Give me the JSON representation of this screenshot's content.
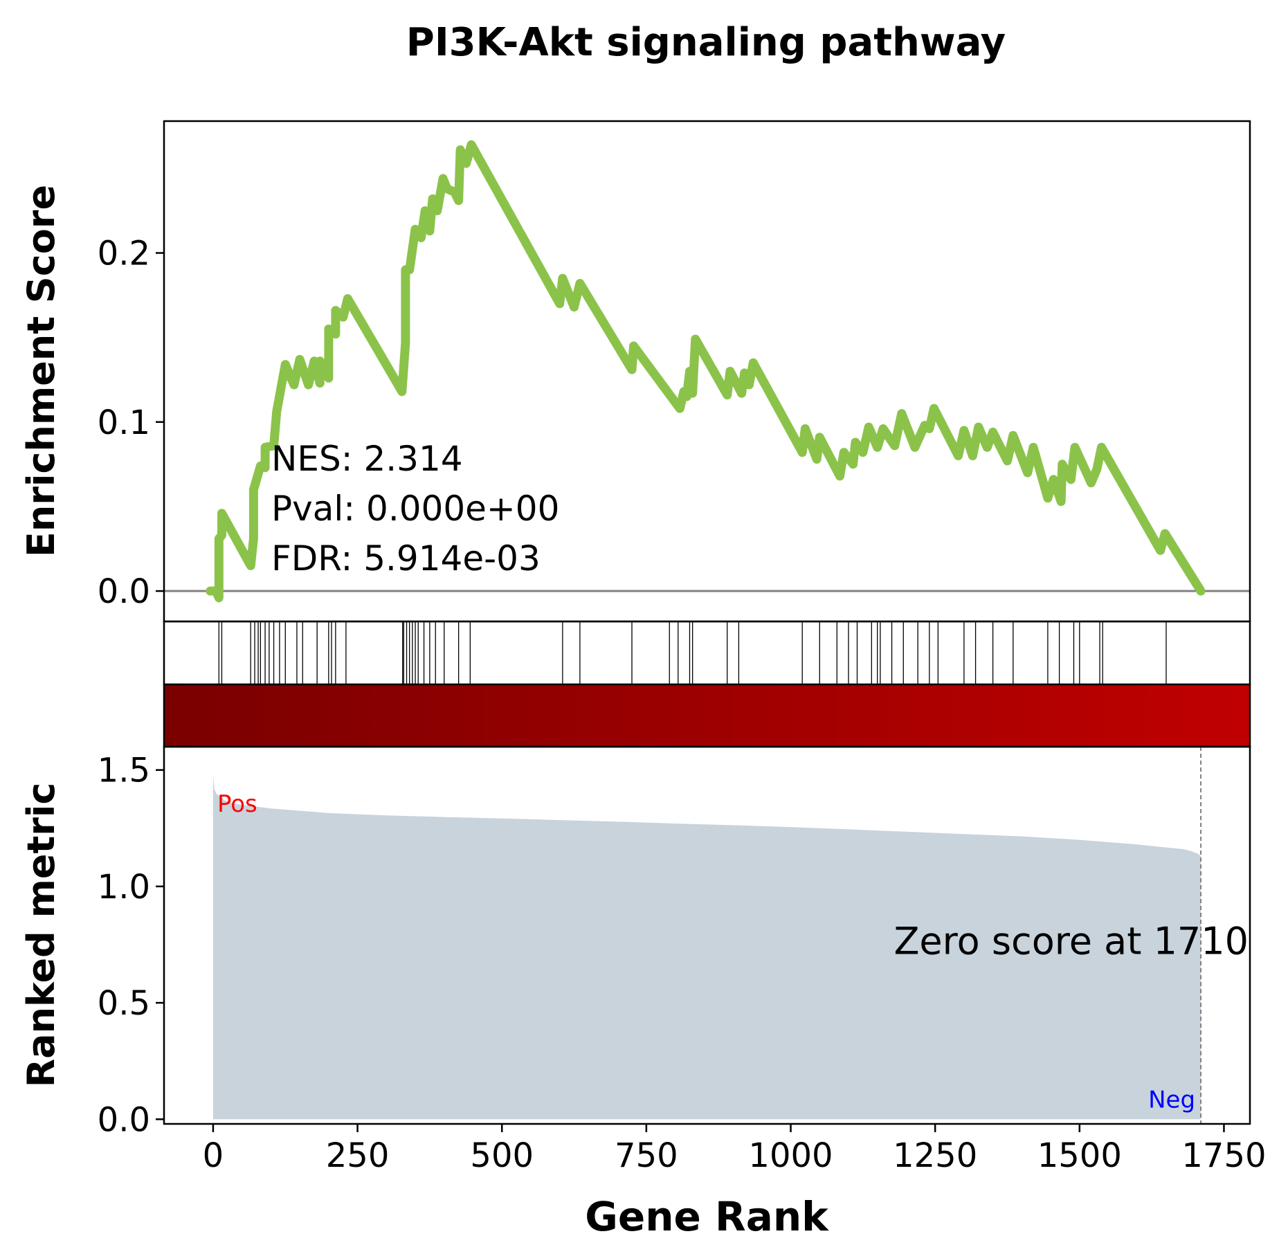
{
  "chart_data": {
    "type": "line",
    "title": "PI3K-Akt signaling pathway",
    "xlabel": "Gene Rank",
    "xlim": [
      -85,
      1795
    ],
    "x_ticks": [
      0,
      250,
      500,
      750,
      1000,
      1250,
      1500,
      1750
    ],
    "x_tick_labels": [
      "0",
      "250",
      "500",
      "750",
      "1000",
      "1250",
      "1500",
      "1750"
    ],
    "enrichment": {
      "ylabel": "Enrichment Score",
      "ylim": [
        -0.018,
        0.278
      ],
      "y_ticks": [
        0.0,
        0.1,
        0.2
      ],
      "y_tick_labels": [
        "0.0",
        "0.1",
        "0.2"
      ],
      "line_color": "#8bc34a",
      "zero_line_color": "#808080",
      "points": [
        [
          -5,
          0.0
        ],
        [
          5,
          0.0
        ],
        [
          10,
          -0.004
        ],
        [
          10,
          0.031
        ],
        [
          15,
          0.033
        ],
        [
          15,
          0.046
        ],
        [
          65,
          0.015
        ],
        [
          70,
          0.031
        ],
        [
          70,
          0.06
        ],
        [
          82,
          0.074
        ],
        [
          90,
          0.073
        ],
        [
          90,
          0.085
        ],
        [
          105,
          0.086
        ],
        [
          110,
          0.106
        ],
        [
          118,
          0.121
        ],
        [
          125,
          0.134
        ],
        [
          140,
          0.122
        ],
        [
          150,
          0.137
        ],
        [
          165,
          0.122
        ],
        [
          175,
          0.136
        ],
        [
          185,
          0.123
        ],
        [
          185,
          0.136
        ],
        [
          200,
          0.126
        ],
        [
          200,
          0.155
        ],
        [
          212,
          0.152
        ],
        [
          212,
          0.166
        ],
        [
          225,
          0.162
        ],
        [
          233,
          0.173
        ],
        [
          327,
          0.118
        ],
        [
          330,
          0.132
        ],
        [
          333,
          0.147
        ],
        [
          333,
          0.19
        ],
        [
          340,
          0.19
        ],
        [
          350,
          0.214
        ],
        [
          360,
          0.209
        ],
        [
          367,
          0.225
        ],
        [
          375,
          0.213
        ],
        [
          380,
          0.232
        ],
        [
          388,
          0.225
        ],
        [
          398,
          0.244
        ],
        [
          405,
          0.238
        ],
        [
          418,
          0.236
        ],
        [
          425,
          0.231
        ],
        [
          428,
          0.261
        ],
        [
          438,
          0.253
        ],
        [
          447,
          0.264
        ],
        [
          600,
          0.17
        ],
        [
          605,
          0.185
        ],
        [
          625,
          0.168
        ],
        [
          635,
          0.182
        ],
        [
          725,
          0.131
        ],
        [
          728,
          0.145
        ],
        [
          808,
          0.108
        ],
        [
          815,
          0.118
        ],
        [
          820,
          0.115
        ],
        [
          825,
          0.13
        ],
        [
          830,
          0.117
        ],
        [
          835,
          0.149
        ],
        [
          890,
          0.116
        ],
        [
          895,
          0.13
        ],
        [
          915,
          0.117
        ],
        [
          920,
          0.129
        ],
        [
          928,
          0.122
        ],
        [
          935,
          0.135
        ],
        [
          1020,
          0.082
        ],
        [
          1025,
          0.096
        ],
        [
          1045,
          0.078
        ],
        [
          1050,
          0.091
        ],
        [
          1085,
          0.068
        ],
        [
          1092,
          0.082
        ],
        [
          1108,
          0.075
        ],
        [
          1112,
          0.088
        ],
        [
          1125,
          0.082
        ],
        [
          1135,
          0.097
        ],
        [
          1150,
          0.085
        ],
        [
          1160,
          0.096
        ],
        [
          1180,
          0.086
        ],
        [
          1192,
          0.105
        ],
        [
          1215,
          0.085
        ],
        [
          1232,
          0.098
        ],
        [
          1240,
          0.096
        ],
        [
          1248,
          0.108
        ],
        [
          1290,
          0.08
        ],
        [
          1300,
          0.095
        ],
        [
          1315,
          0.08
        ],
        [
          1325,
          0.097
        ],
        [
          1340,
          0.085
        ],
        [
          1350,
          0.094
        ],
        [
          1375,
          0.077
        ],
        [
          1385,
          0.092
        ],
        [
          1410,
          0.07
        ],
        [
          1420,
          0.085
        ],
        [
          1445,
          0.055
        ],
        [
          1455,
          0.066
        ],
        [
          1468,
          0.053
        ],
        [
          1470,
          0.075
        ],
        [
          1485,
          0.066
        ],
        [
          1492,
          0.085
        ],
        [
          1520,
          0.064
        ],
        [
          1530,
          0.072
        ],
        [
          1538,
          0.085
        ],
        [
          1640,
          0.024
        ],
        [
          1648,
          0.034
        ],
        [
          1710,
          0.0
        ]
      ]
    },
    "hits": [
      10,
      15,
      65,
      72,
      78,
      82,
      90,
      97,
      105,
      115,
      125,
      145,
      155,
      180,
      200,
      205,
      212,
      230,
      328,
      330,
      335,
      340,
      345,
      350,
      355,
      365,
      375,
      385,
      400,
      425,
      445,
      605,
      635,
      725,
      790,
      805,
      825,
      830,
      890,
      910,
      1020,
      1050,
      1080,
      1100,
      1115,
      1140,
      1150,
      1155,
      1175,
      1195,
      1220,
      1240,
      1255,
      1300,
      1320,
      1350,
      1385,
      1445,
      1465,
      1490,
      1500,
      1535,
      1540,
      1650
    ],
    "ranked_metric": {
      "ylabel": "Ranked metric",
      "ylim": [
        -0.02,
        1.6
      ],
      "y_ticks": [
        0.0,
        0.5,
        1.0,
        1.5
      ],
      "y_tick_labels": [
        "0.0",
        "0.5",
        "1.0",
        "1.5"
      ],
      "fill_color": "#c8d3dc",
      "x": [
        0,
        2,
        5,
        10,
        20,
        30,
        50,
        100,
        150,
        200,
        300,
        400,
        500,
        600,
        700,
        800,
        900,
        1000,
        1100,
        1200,
        1300,
        1400,
        1500,
        1550,
        1600,
        1640,
        1680,
        1695,
        1705,
        1710
      ],
      "values": [
        1.48,
        1.42,
        1.4,
        1.39,
        1.37,
        1.36,
        1.35,
        1.335,
        1.325,
        1.315,
        1.305,
        1.298,
        1.292,
        1.285,
        1.278,
        1.27,
        1.263,
        1.255,
        1.245,
        1.235,
        1.225,
        1.215,
        1.2,
        1.19,
        1.18,
        1.17,
        1.16,
        1.15,
        1.14,
        1.13
      ],
      "pos_label": "Pos",
      "pos_color": "#ff0000",
      "neg_label": "Neg",
      "neg_color": "#0000ff",
      "zero_score_rank": 1710,
      "zero_score_text": "Zero score at 1710"
    },
    "colorbar": {
      "from": "#7a0000",
      "to": "#c00000"
    },
    "stats": {
      "nes": "NES: 2.314",
      "pval": "Pval: 0.000e+00",
      "fdr": "FDR: 5.914e-03"
    }
  }
}
